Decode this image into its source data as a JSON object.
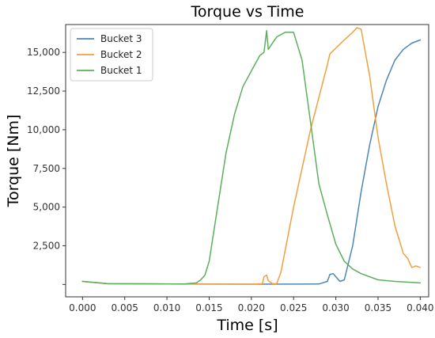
{
  "chart_data": {
    "type": "line",
    "title": "Torque vs Time",
    "xlabel": "Time [s]",
    "ylabel": "Torque [Nm]",
    "xlim": [
      -0.002,
      0.041
    ],
    "ylim": [
      -800,
      16800
    ],
    "xticks": [
      0.0,
      0.005,
      0.01,
      0.015,
      0.02,
      0.025,
      0.03,
      0.035,
      0.04
    ],
    "xtick_labels": [
      "0.000",
      "0.005",
      "0.010",
      "0.015",
      "0.020",
      "0.025",
      "0.030",
      "0.035",
      "0.040"
    ],
    "yticks": [
      0,
      2500,
      5000,
      7500,
      10000,
      12500,
      15000
    ],
    "ytick_labels": [
      "",
      "2,500",
      "5,000",
      "7,500",
      "10,000",
      "12,500",
      "15,000"
    ],
    "grid": false,
    "legend_position": "top-left",
    "series": [
      {
        "name": "Bucket 3",
        "color": "#4c86b3",
        "points": [
          [
            0.0,
            200
          ],
          [
            0.003,
            50
          ],
          [
            0.01,
            30
          ],
          [
            0.02,
            20
          ],
          [
            0.028,
            30
          ],
          [
            0.029,
            200
          ],
          [
            0.0293,
            650
          ],
          [
            0.0297,
            700
          ],
          [
            0.03,
            500
          ],
          [
            0.0305,
            200
          ],
          [
            0.031,
            300
          ],
          [
            0.032,
            2500
          ],
          [
            0.033,
            6000
          ],
          [
            0.034,
            9000
          ],
          [
            0.035,
            11500
          ],
          [
            0.036,
            13200
          ],
          [
            0.037,
            14500
          ],
          [
            0.038,
            15200
          ],
          [
            0.039,
            15600
          ],
          [
            0.04,
            15800
          ]
        ]
      },
      {
        "name": "Bucket 2",
        "color": "#f0a040",
        "points": [
          [
            0.0,
            200
          ],
          [
            0.003,
            50
          ],
          [
            0.01,
            30
          ],
          [
            0.02,
            20
          ],
          [
            0.0213,
            50
          ],
          [
            0.0215,
            500
          ],
          [
            0.0218,
            600
          ],
          [
            0.022,
            250
          ],
          [
            0.0225,
            50
          ],
          [
            0.023,
            50
          ],
          [
            0.0235,
            800
          ],
          [
            0.025,
            5000
          ],
          [
            0.027,
            10000
          ],
          [
            0.029,
            14200
          ],
          [
            0.0293,
            14900
          ],
          [
            0.031,
            15800
          ],
          [
            0.032,
            16300
          ],
          [
            0.0325,
            16600
          ],
          [
            0.033,
            16500
          ],
          [
            0.034,
            13500
          ],
          [
            0.035,
            9500
          ],
          [
            0.036,
            6500
          ],
          [
            0.037,
            3800
          ],
          [
            0.038,
            2000
          ],
          [
            0.0385,
            1700
          ],
          [
            0.039,
            1100
          ],
          [
            0.0395,
            1200
          ],
          [
            0.04,
            1100
          ]
        ]
      },
      {
        "name": "Bucket 1",
        "color": "#5caf5c",
        "points": [
          [
            0.0,
            200
          ],
          [
            0.003,
            50
          ],
          [
            0.012,
            30
          ],
          [
            0.0135,
            100
          ],
          [
            0.014,
            300
          ],
          [
            0.0145,
            600
          ],
          [
            0.015,
            1500
          ],
          [
            0.016,
            5000
          ],
          [
            0.017,
            8500
          ],
          [
            0.018,
            11000
          ],
          [
            0.019,
            12800
          ],
          [
            0.02,
            13800
          ],
          [
            0.021,
            14800
          ],
          [
            0.0215,
            15000
          ],
          [
            0.0218,
            16400
          ],
          [
            0.022,
            15200
          ],
          [
            0.023,
            16000
          ],
          [
            0.024,
            16300
          ],
          [
            0.025,
            16300
          ],
          [
            0.026,
            14500
          ],
          [
            0.027,
            10500
          ],
          [
            0.028,
            6500
          ],
          [
            0.029,
            4500
          ],
          [
            0.03,
            2600
          ],
          [
            0.031,
            1500
          ],
          [
            0.032,
            1000
          ],
          [
            0.033,
            700
          ],
          [
            0.035,
            300
          ],
          [
            0.037,
            200
          ],
          [
            0.04,
            100
          ]
        ]
      }
    ]
  }
}
